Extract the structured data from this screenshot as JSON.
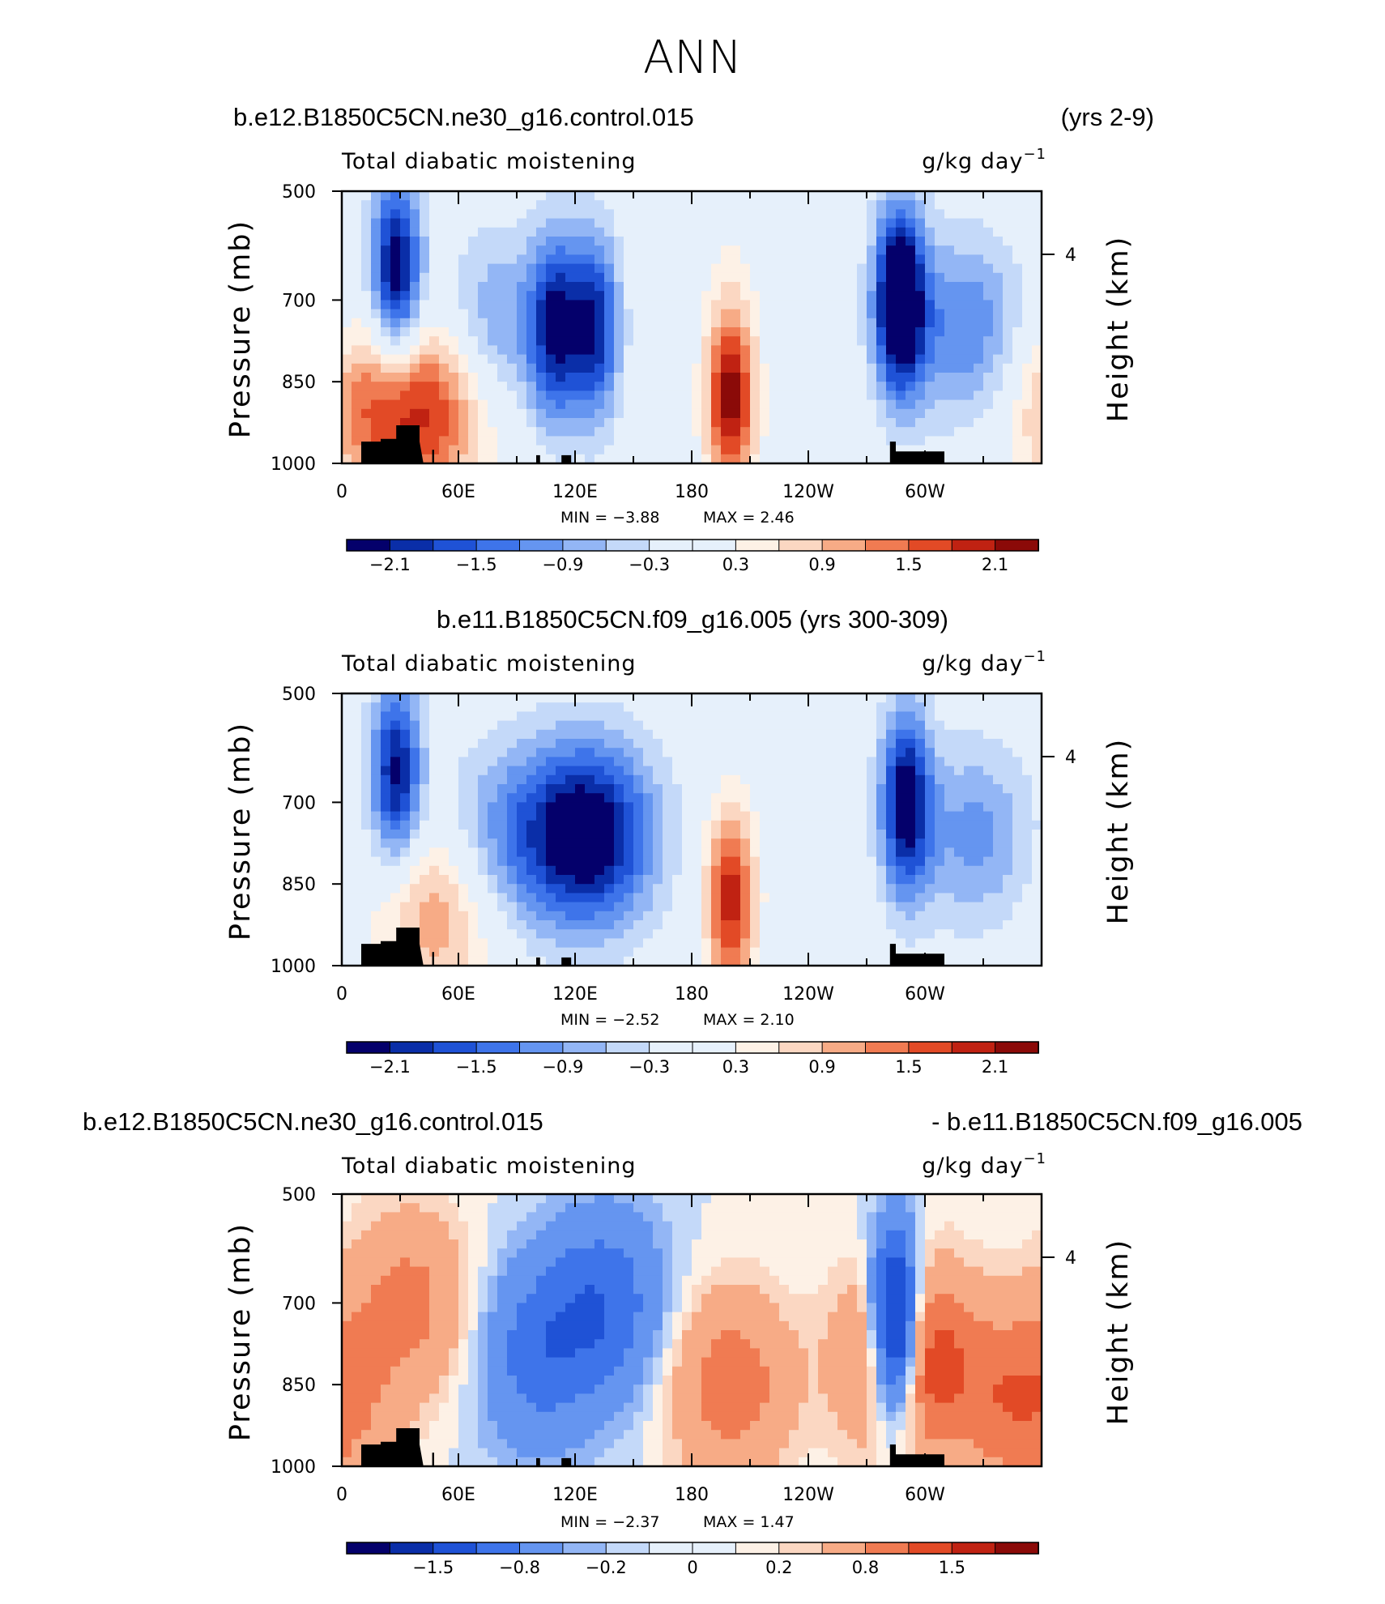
{
  "title": "ANN",
  "colors": {
    "land": "#000000",
    "palette": [
      "#04006b",
      "#0a2ea8",
      "#1f52d6",
      "#3e74ea",
      "#6595f0",
      "#93b6f5",
      "#c4d9f9",
      "#e6f0fb",
      "#fdf1e6",
      "#fbd7c2",
      "#f7ab86",
      "#f07b52",
      "#e24a26",
      "#c02212",
      "#8b0a08"
    ]
  },
  "chart_data": [
    {
      "type": "heatmap",
      "case_left": "b.e12.B1850C5CN.ne30_g16.control.015",
      "case_right": "(yrs 2-9)",
      "variable": "Total diabatic moistening",
      "units_base": "g/kg day",
      "units_exp": "−1",
      "ylabel": "Pressure (mb)",
      "ylabel_right": "Height (km)",
      "y_ticks": [
        "500",
        "700",
        "850",
        "1000"
      ],
      "y_ticks_right": [
        "4"
      ],
      "x_ticks": [
        "0",
        "60E",
        "120E",
        "180",
        "120W",
        "60W"
      ],
      "min_text": "MIN =   −3.88",
      "max_text": "MAX =    2.46",
      "min": -3.88,
      "max": 2.46,
      "colorbar_labels": [
        "−2.1",
        "−1.5",
        "−0.9",
        "−0.3",
        "0.3",
        "0.9",
        "1.5",
        "2.1"
      ],
      "colorbar_levels": [
        -2.4,
        -2.1,
        -1.8,
        -1.5,
        -1.2,
        -0.9,
        -0.6,
        -0.3,
        0.0,
        0.3,
        0.6,
        0.9,
        1.2,
        1.5,
        1.8,
        2.1,
        2.4
      ],
      "features": [
        {
          "lon": 200,
          "p": 880,
          "value": 2.3
        },
        {
          "lon": 130,
          "p": 750,
          "value": -2.0
        },
        {
          "lon": 110,
          "p": 750,
          "value": -1.9
        },
        {
          "lon": 28,
          "p": 650,
          "value": -2.5
        },
        {
          "lon": 287,
          "p": 700,
          "value": -3.0
        },
        {
          "lon": 320,
          "p": 750,
          "value": -1.2
        },
        {
          "lon": 80,
          "p": 750,
          "value": -1.0
        },
        {
          "lon": 15,
          "p": 900,
          "value": 1.2
        },
        {
          "lon": 48,
          "p": 900,
          "value": 1.5
        },
        {
          "lon": 200,
          "p": 520,
          "value": 0.2
        }
      ]
    },
    {
      "type": "heatmap",
      "case_left": "b.e11.B1850C5CN.f09_g16.005 (yrs 300-309)",
      "case_right": "",
      "variable": "Total diabatic moistening",
      "units_base": "g/kg day",
      "units_exp": "−1",
      "ylabel": "Pressure (mb)",
      "ylabel_right": "Height (km)",
      "y_ticks": [
        "500",
        "700",
        "850",
        "1000"
      ],
      "y_ticks_right": [
        "4"
      ],
      "x_ticks": [
        "0",
        "60E",
        "120E",
        "180",
        "120W",
        "60W"
      ],
      "min_text": "MIN =   −2.52",
      "max_text": "MAX =    2.10",
      "min": -2.52,
      "max": 2.1,
      "colorbar_labels": [
        "−2.1",
        "−1.5",
        "−0.9",
        "−0.3",
        "0.3",
        "0.9",
        "1.5",
        "2.1"
      ],
      "colorbar_levels": [
        -2.4,
        -2.1,
        -1.8,
        -1.5,
        -1.2,
        -0.9,
        -0.6,
        -0.3,
        0.0,
        0.3,
        0.6,
        0.9,
        1.2,
        1.5,
        1.8,
        2.1,
        2.4
      ],
      "features": [
        {
          "lon": 200,
          "p": 880,
          "value": 2.0
        },
        {
          "lon": 135,
          "p": 760,
          "value": -1.5
        },
        {
          "lon": 115,
          "p": 760,
          "value": -1.4
        },
        {
          "lon": 28,
          "p": 650,
          "value": -2.2
        },
        {
          "lon": 290,
          "p": 700,
          "value": -2.3
        },
        {
          "lon": 325,
          "p": 760,
          "value": -1.0
        },
        {
          "lon": 78,
          "p": 760,
          "value": -0.8
        },
        {
          "lon": 48,
          "p": 900,
          "value": 1.2
        }
      ]
    },
    {
      "type": "heatmap",
      "case_left": "b.e12.B1850C5CN.ne30_g16.control.015",
      "case_right": "- b.e11.B1850C5CN.f09_g16.005",
      "variable": "Total diabatic moistening",
      "units_base": "g/kg day",
      "units_exp": "−1",
      "ylabel": "Pressure (mb)",
      "ylabel_right": "Height (km)",
      "y_ticks": [
        "500",
        "700",
        "850",
        "1000"
      ],
      "y_ticks_right": [
        "4"
      ],
      "x_ticks": [
        "0",
        "60E",
        "120E",
        "180",
        "120W",
        "60W"
      ],
      "min_text": "MIN =   −2.37",
      "max_text": "MAX =    1.47",
      "min": -2.37,
      "max": 1.47,
      "colorbar_labels": [
        "−1.5",
        "−0.8",
        "−0.2",
        "0",
        "0.2",
        "0.8",
        "1.5"
      ],
      "colorbar_levels": [
        -2.0,
        -1.5,
        -1.2,
        -0.8,
        -0.5,
        -0.2,
        -0.1,
        0.0,
        0.1,
        0.2,
        0.5,
        0.8,
        1.2,
        1.5,
        2.0
      ],
      "features": [
        {
          "lon": 200,
          "p": 850,
          "value": 0.7
        },
        {
          "lon": 100,
          "p": 800,
          "value": -0.6
        },
        {
          "lon": 135,
          "p": 700,
          "value": -0.7
        },
        {
          "lon": 285,
          "p": 750,
          "value": -2.2
        },
        {
          "lon": 292,
          "p": 800,
          "value": 1.2
        },
        {
          "lon": 35,
          "p": 700,
          "value": 0.6
        },
        {
          "lon": 350,
          "p": 880,
          "value": 0.8
        }
      ]
    }
  ]
}
